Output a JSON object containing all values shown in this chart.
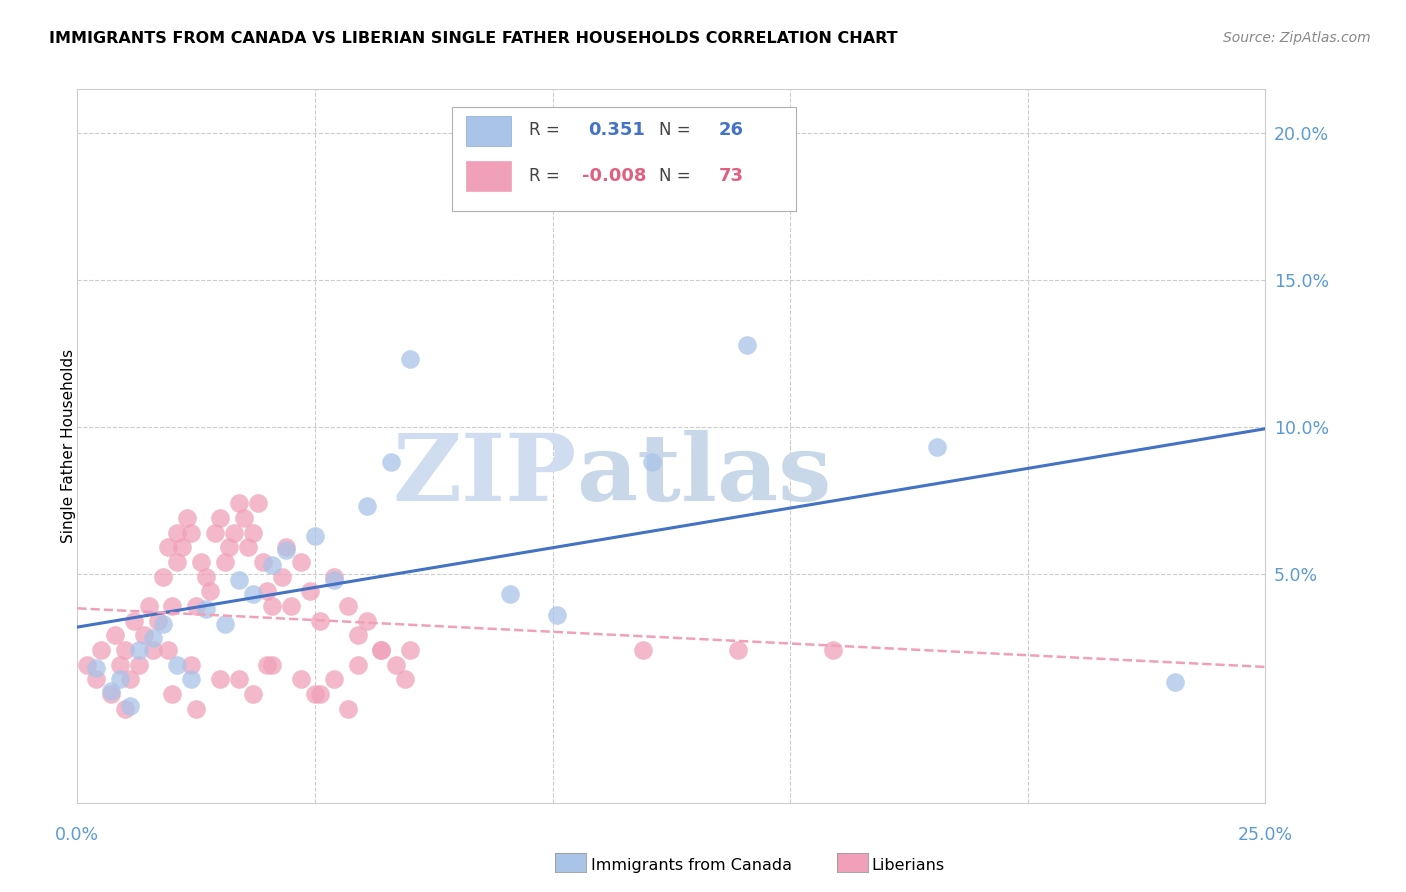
{
  "title": "IMMIGRANTS FROM CANADA VS LIBERIAN SINGLE FATHER HOUSEHOLDS CORRELATION CHART",
  "source": "Source: ZipAtlas.com",
  "ylabel": "Single Father Households",
  "right_yticks": [
    "20.0%",
    "15.0%",
    "10.0%",
    "5.0%"
  ],
  "right_ytick_vals": [
    0.2,
    0.15,
    0.1,
    0.05
  ],
  "xlim": [
    0.0,
    0.25
  ],
  "ylim": [
    -0.028,
    0.215
  ],
  "blue_color": "#aac4e8",
  "pink_color": "#f0a0b8",
  "trendline_blue_color": "#4472c4",
  "trendline_pink_color": "#f0a0b8",
  "blue_scatter_x": [
    0.004,
    0.007,
    0.009,
    0.011,
    0.013,
    0.016,
    0.018,
    0.021,
    0.024,
    0.027,
    0.031,
    0.034,
    0.037,
    0.041,
    0.044,
    0.05,
    0.054,
    0.061,
    0.066,
    0.07,
    0.091,
    0.101,
    0.121,
    0.141,
    0.181,
    0.231
  ],
  "blue_scatter_y": [
    0.018,
    0.01,
    0.014,
    0.005,
    0.024,
    0.028,
    0.033,
    0.019,
    0.014,
    0.038,
    0.033,
    0.048,
    0.043,
    0.053,
    0.058,
    0.063,
    0.048,
    0.073,
    0.088,
    0.123,
    0.043,
    0.036,
    0.088,
    0.128,
    0.093,
    0.013
  ],
  "pink_scatter_x": [
    0.002,
    0.004,
    0.005,
    0.007,
    0.008,
    0.009,
    0.01,
    0.011,
    0.012,
    0.013,
    0.014,
    0.015,
    0.016,
    0.017,
    0.018,
    0.019,
    0.02,
    0.021,
    0.021,
    0.022,
    0.023,
    0.024,
    0.025,
    0.026,
    0.027,
    0.028,
    0.029,
    0.03,
    0.031,
    0.032,
    0.033,
    0.034,
    0.035,
    0.036,
    0.037,
    0.038,
    0.039,
    0.04,
    0.041,
    0.043,
    0.044,
    0.045,
    0.047,
    0.049,
    0.051,
    0.054,
    0.057,
    0.059,
    0.061,
    0.064,
    0.067,
    0.07,
    0.01,
    0.02,
    0.025,
    0.03,
    0.04,
    0.05,
    0.054,
    0.059,
    0.019,
    0.024,
    0.034,
    0.037,
    0.041,
    0.047,
    0.051,
    0.057,
    0.064,
    0.069,
    0.119,
    0.139,
    0.159
  ],
  "pink_scatter_y": [
    0.019,
    0.014,
    0.024,
    0.009,
    0.029,
    0.019,
    0.024,
    0.014,
    0.034,
    0.019,
    0.029,
    0.039,
    0.024,
    0.034,
    0.049,
    0.059,
    0.039,
    0.054,
    0.064,
    0.059,
    0.069,
    0.064,
    0.039,
    0.054,
    0.049,
    0.044,
    0.064,
    0.069,
    0.054,
    0.059,
    0.064,
    0.074,
    0.069,
    0.059,
    0.064,
    0.074,
    0.054,
    0.044,
    0.039,
    0.049,
    0.059,
    0.039,
    0.054,
    0.044,
    0.034,
    0.049,
    0.039,
    0.029,
    0.034,
    0.024,
    0.019,
    0.024,
    0.004,
    0.009,
    0.004,
    0.014,
    0.019,
    0.009,
    0.014,
    0.019,
    0.024,
    0.019,
    0.014,
    0.009,
    0.019,
    0.014,
    0.009,
    0.004,
    0.024,
    0.014,
    0.024,
    0.024,
    0.024
  ]
}
